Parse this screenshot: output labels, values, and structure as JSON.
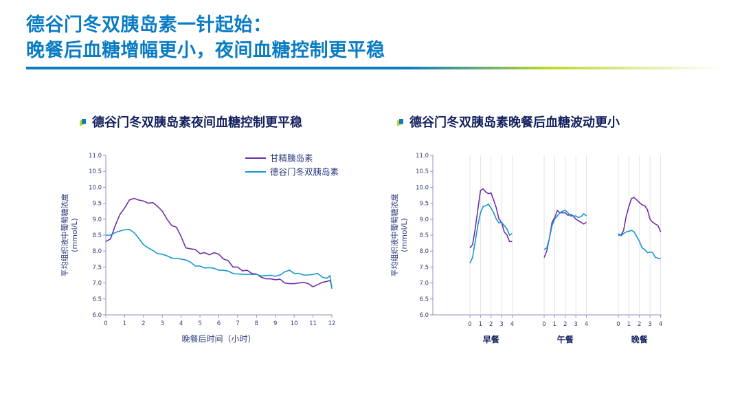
{
  "title": {
    "line1": "德谷门冬双胰岛素一针起始：",
    "line2": "晚餐后血糖增幅更小，夜间血糖控制更平稳"
  },
  "colors": {
    "purple": "#6f2da8",
    "blue": "#1496d2",
    "title": "#0a7cc4",
    "axis": "#2d3a7a"
  },
  "chart_data": [
    {
      "type": "line",
      "title": "德谷门冬双胰岛素夜间血糖控制更平稳",
      "xlabel": "晚餐后时间（小时）",
      "ylabel_line1": "平均组织液中葡萄糖浓度",
      "ylabel_line2": "(mmol/L)",
      "ylim": [
        6.0,
        11.0
      ],
      "xlim": [
        0,
        12
      ],
      "yticks": [
        "6.0",
        "6.5",
        "7.0",
        "7.5",
        "8.0",
        "8.5",
        "9.0",
        "9.5",
        "10.0",
        "10.5",
        "11.0"
      ],
      "xticks": [
        "0",
        "1",
        "2",
        "3",
        "4",
        "5",
        "6",
        "7",
        "8",
        "9",
        "10",
        "11",
        "12"
      ],
      "legend_position": "top-right",
      "series": [
        {
          "name": "甘精胰岛素",
          "color": "#6f2da8",
          "x": [
            0,
            0.25,
            0.5,
            0.75,
            1,
            1.25,
            1.5,
            1.75,
            2,
            2.25,
            2.5,
            2.75,
            3,
            3.25,
            3.5,
            3.75,
            4,
            4.25,
            4.5,
            4.75,
            5,
            5.25,
            5.5,
            5.75,
            6,
            6.25,
            6.5,
            6.75,
            7,
            7.25,
            7.5,
            7.75,
            8,
            8.25,
            8.5,
            8.75,
            9,
            9.25,
            9.5,
            9.75,
            10,
            10.25,
            10.5,
            10.75,
            11,
            11.25,
            11.5,
            11.75,
            11.9,
            12
          ],
          "y": [
            8.3,
            8.38,
            8.8,
            9.15,
            9.35,
            9.6,
            9.65,
            9.6,
            9.57,
            9.5,
            9.52,
            9.4,
            9.25,
            9.0,
            8.8,
            8.75,
            8.45,
            8.1,
            8.07,
            8.05,
            7.92,
            7.95,
            7.88,
            7.95,
            7.9,
            7.75,
            7.7,
            7.5,
            7.5,
            7.38,
            7.4,
            7.3,
            7.28,
            7.18,
            7.13,
            7.13,
            7.1,
            7.12,
            7.0,
            6.98,
            6.98,
            7.0,
            7.02,
            6.98,
            6.88,
            6.95,
            7.02,
            7.05,
            7.08,
            6.9
          ]
        },
        {
          "name": "德谷门冬双胰岛素",
          "color": "#1496d2",
          "x": [
            0,
            0.25,
            0.5,
            0.75,
            1,
            1.25,
            1.5,
            1.75,
            2,
            2.25,
            2.5,
            2.75,
            3,
            3.25,
            3.5,
            3.75,
            4,
            4.25,
            4.5,
            4.75,
            5,
            5.25,
            5.5,
            5.75,
            6,
            6.25,
            6.5,
            6.75,
            7,
            7.5,
            8,
            8.25,
            8.5,
            8.75,
            9,
            9.25,
            9.5,
            9.75,
            10,
            10.25,
            10.5,
            10.75,
            11,
            11.25,
            11.5,
            11.75,
            11.9,
            12
          ],
          "y": [
            8.5,
            8.5,
            8.58,
            8.63,
            8.67,
            8.68,
            8.58,
            8.4,
            8.2,
            8.1,
            8.02,
            7.92,
            7.9,
            7.85,
            7.78,
            7.77,
            7.75,
            7.72,
            7.65,
            7.53,
            7.53,
            7.47,
            7.48,
            7.46,
            7.4,
            7.4,
            7.37,
            7.3,
            7.28,
            7.27,
            7.27,
            7.22,
            7.23,
            7.24,
            7.21,
            7.25,
            7.35,
            7.4,
            7.3,
            7.3,
            7.25,
            7.25,
            7.27,
            7.3,
            7.18,
            7.15,
            7.23,
            6.82
          ]
        }
      ]
    },
    {
      "type": "line",
      "title": "德谷门冬双胰岛素晚餐后血糖波动更小",
      "ylabel_line1": "平均组织液中葡萄糖浓度",
      "ylabel_line2": "(mmol/L)",
      "ylim": [
        6.0,
        11.0
      ],
      "yticks": [
        "6.0",
        "6.5",
        "7.0",
        "7.5",
        "8.0",
        "8.5",
        "9.0",
        "9.5",
        "10.0",
        "10.5",
        "11.0"
      ],
      "xticks": [
        "0",
        "1",
        "2",
        "3",
        "4"
      ],
      "xlim": [
        0,
        4
      ],
      "groups": [
        {
          "label": "早餐",
          "series": [
            {
              "name": "甘精胰岛素",
              "color": "#6f2da8",
              "y": [
                8.1,
                8.2,
                8.7,
                9.3,
                9.9,
                9.95,
                9.85,
                9.8,
                9.82,
                9.6,
                9.35,
                9.0,
                8.9,
                8.6,
                8.5,
                8.3,
                8.3
              ]
            },
            {
              "name": "德谷门冬双胰岛素",
              "color": "#1496d2",
              "y": [
                7.62,
                7.8,
                8.3,
                8.8,
                9.2,
                9.4,
                9.42,
                9.47,
                9.35,
                9.2,
                9.0,
                8.88,
                8.9,
                8.8,
                8.7,
                8.5,
                8.55
              ]
            }
          ]
        },
        {
          "label": "午餐",
          "series": [
            {
              "name": "甘精胰岛素",
              "color": "#6f2da8",
              "y": [
                7.8,
                8.0,
                8.4,
                8.9,
                9.05,
                9.27,
                9.2,
                9.2,
                9.2,
                9.12,
                9.15,
                9.1,
                9.0,
                8.95,
                8.9,
                8.85,
                8.9
              ]
            },
            {
              "name": "德谷门冬双胰岛素",
              "color": "#1496d2",
              "y": [
                8.05,
                8.1,
                8.4,
                8.8,
                9.0,
                9.1,
                9.2,
                9.25,
                9.28,
                9.2,
                9.1,
                9.1,
                9.1,
                9.05,
                9.08,
                9.17,
                9.1
              ]
            }
          ]
        },
        {
          "label": "晚餐",
          "series": [
            {
              "name": "甘精胰岛素",
              "color": "#6f2da8",
              "y": [
                8.5,
                8.5,
                8.65,
                9.1,
                9.4,
                9.65,
                9.68,
                9.6,
                9.52,
                9.45,
                9.42,
                9.3,
                9.0,
                8.9,
                8.85,
                8.8,
                8.6
              ]
            },
            {
              "name": "德谷门冬双胰岛素",
              "color": "#1496d2",
              "y": [
                8.55,
                8.48,
                8.55,
                8.6,
                8.62,
                8.65,
                8.6,
                8.45,
                8.3,
                8.1,
                8.05,
                7.95,
                7.97,
                7.95,
                7.8,
                7.78,
                7.75
              ]
            }
          ]
        }
      ]
    }
  ]
}
